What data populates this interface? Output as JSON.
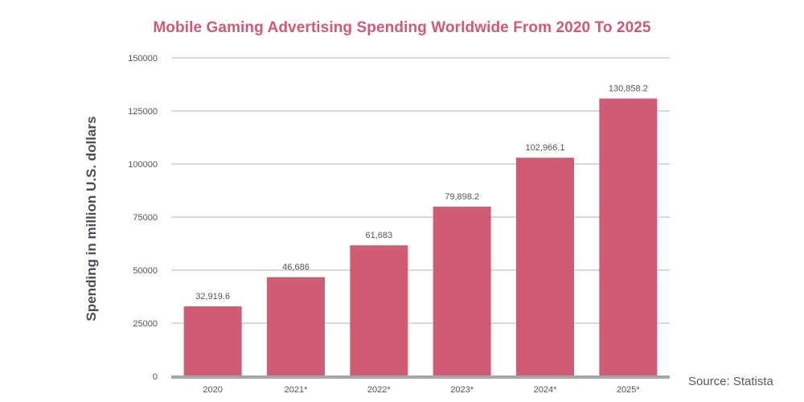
{
  "colors": {
    "title": "#d05a74",
    "bar": "#cf5c73",
    "grid": "#d9d9d9",
    "baseline": "#a6a6a6",
    "text": "#555555",
    "axis_title": "#4a4e5a",
    "source": "#555a66"
  },
  "source": "Source: Statista",
  "chart_data": {
    "type": "bar",
    "title": "Mobile Gaming Advertising Spending Worldwide From 2020 To 2025",
    "xlabel": "",
    "ylabel": "Spending in million U.S. dollars",
    "categories": [
      "2020",
      "2021*",
      "2022*",
      "2023*",
      "2024*",
      "2025*"
    ],
    "values": [
      32919.6,
      46686,
      61683,
      79898.2,
      102966.1,
      130858.2
    ],
    "data_labels": [
      "32,919.6",
      "46,686",
      "61,683",
      "79,898.2",
      "102,966.1",
      "130,858.2"
    ],
    "ylim": [
      0,
      150000
    ],
    "yticks": [
      0,
      25000,
      50000,
      75000,
      100000,
      125000,
      150000
    ],
    "ytick_labels": [
      "0",
      "25000",
      "50000",
      "75000",
      "100000",
      "125000",
      "150000"
    ],
    "grid": true,
    "legend": "none"
  }
}
